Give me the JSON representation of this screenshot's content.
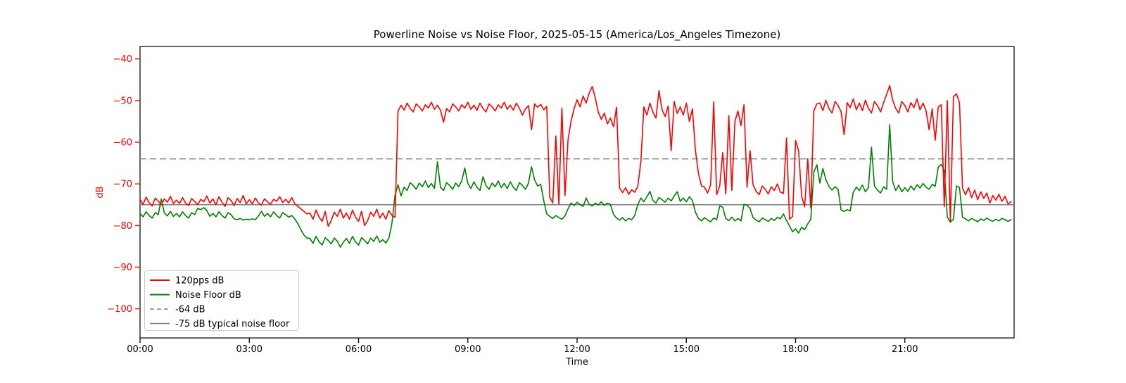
{
  "title": "Powerline Noise vs Noise Floor, 2025-05-15 (America/Los_Angeles Timezone)",
  "colors": {
    "series_red": "#ff0000",
    "series_green": "#008000",
    "reference_gray": "#808080",
    "y_axis_text": "#ff0000",
    "x_axis_text": "#000000",
    "legend_border": "#cccccc",
    "background": "#ffffff"
  },
  "legend": {
    "items": [
      {
        "label": "120pps dB",
        "color": "#ff0000",
        "style": "solid"
      },
      {
        "label": "Noise Floor dB",
        "color": "#008000",
        "style": "solid"
      },
      {
        "label": "-64 dB",
        "color": "#808080",
        "style": "dashed"
      },
      {
        "label": "-75 dB typical noise floor",
        "color": "#808080",
        "style": "solid"
      }
    ]
  },
  "chart_data": {
    "type": "line",
    "title": "Powerline Noise vs Noise Floor, 2025-05-15 (America/Los_Angeles Timezone)",
    "xlabel": "Time",
    "ylabel": "dB",
    "ylim": [
      -107,
      -37
    ],
    "xlim_hours": [
      0,
      24
    ],
    "grid": false,
    "legend_position": "lower left",
    "y_ticks": [
      {
        "value": -40,
        "label": "−40"
      },
      {
        "value": -50,
        "label": "−50"
      },
      {
        "value": -60,
        "label": "−60"
      },
      {
        "value": -70,
        "label": "−70"
      },
      {
        "value": -80,
        "label": "−80"
      },
      {
        "value": -90,
        "label": "−90"
      },
      {
        "value": -100,
        "label": "−100"
      }
    ],
    "x_ticks": [
      {
        "hour": 0,
        "label": "00:00"
      },
      {
        "hour": 3,
        "label": "03:00"
      },
      {
        "hour": 6,
        "label": "06:00"
      },
      {
        "hour": 9,
        "label": "09:00"
      },
      {
        "hour": 12,
        "label": "12:00"
      },
      {
        "hour": 15,
        "label": "15:00"
      },
      {
        "hour": 18,
        "label": "18:00"
      },
      {
        "hour": 21,
        "label": "21:00"
      }
    ],
    "sample_interval_min": 5,
    "series": [
      {
        "name": "120pps dB",
        "color": "#ff0000",
        "style": "solid",
        "values": [
          -73.7,
          -74.9,
          -73.2,
          -74.5,
          -75.3,
          -73.4,
          -74.1,
          -75.1,
          -73.6,
          -74.4,
          -73.0,
          -74.7,
          -73.9,
          -74.7,
          -73.3,
          -74.6,
          -75.2,
          -73.5,
          -74.2,
          -75.0,
          -73.7,
          -74.3,
          -72.9,
          -74.6,
          -73.6,
          -75.0,
          -73.1,
          -74.4,
          -75.4,
          -73.3,
          -74.0,
          -75.2,
          -73.5,
          -74.5,
          -72.8,
          -74.8,
          -73.8,
          -74.8,
          -73.4,
          -74.6,
          -75.1,
          -73.6,
          -74.3,
          -74.9,
          -73.7,
          -74.2,
          -73.1,
          -74.5,
          -73.7,
          -74.6,
          -73.3,
          -74.8,
          -75.4,
          -76.0,
          -76.6,
          -77.2,
          -77.0,
          -78.5,
          -76.3,
          -78.0,
          -79.0,
          -76.6,
          -80.2,
          -78.8,
          -76.8,
          -77.8,
          -76.1,
          -78.2,
          -77.0,
          -78.5,
          -76.3,
          -78.0,
          -79.0,
          -76.6,
          -80.0,
          -78.8,
          -76.8,
          -77.8,
          -76.1,
          -78.2,
          -77.0,
          -78.5,
          -76.4,
          -77.6,
          -78.0,
          -52.5,
          -51.1,
          -52.3,
          -50.6,
          -51.9,
          -52.7,
          -50.8,
          -51.5,
          -52.5,
          -51.0,
          -51.8,
          -50.4,
          -52.1,
          -51.1,
          -52.3,
          -55.2,
          -51.9,
          -52.7,
          -50.8,
          -51.5,
          -52.5,
          -51.0,
          -51.8,
          -50.4,
          -52.1,
          -51.1,
          -52.3,
          -50.6,
          -51.9,
          -52.7,
          -50.8,
          -51.5,
          -52.5,
          -51.0,
          -51.8,
          -50.4,
          -52.1,
          -51.1,
          -52.3,
          -50.6,
          -51.9,
          -53.5,
          -52.0,
          -51.2,
          -57.0,
          -50.8,
          -51.6,
          -50.9,
          -52.2,
          -51.4,
          -73.2,
          -74.6,
          -58.5,
          -74.9,
          -51.8,
          -72.8,
          -59.5,
          -55.0,
          -52.0,
          -49.8,
          -51.5,
          -48.9,
          -50.6,
          -48.2,
          -46.6,
          -49.4,
          -52.8,
          -54.5,
          -53.0,
          -55.6,
          -54.2,
          -56.3,
          -51.6,
          -71.0,
          -72.1,
          -70.9,
          -72.5,
          -71.4,
          -72.0,
          -70.6,
          -64.8,
          -51.5,
          -53.5,
          -50.6,
          -52.8,
          -54.2,
          -47.6,
          -52.2,
          -53.8,
          -51.3,
          -62.0,
          -50.2,
          -53.1,
          -51.5,
          -53.5,
          -50.6,
          -55.0,
          -52.0,
          -62.0,
          -67.5,
          -70.5,
          -70.8,
          -72.2,
          -70.2,
          -50.3,
          -72.6,
          -70.5,
          -62.5,
          -72.4,
          -53.6,
          -71.6,
          -55.0,
          -52.5,
          -56.0,
          -51.0,
          -70.8,
          -62.0,
          -70.2,
          -71.8,
          -72.6,
          -70.5,
          -71.3,
          -72.4,
          -70.7,
          -71.6,
          -70.0,
          -72.0,
          -72.3,
          -59.0,
          -78.5,
          -77.8,
          -59.6,
          -62.0,
          -73.0,
          -75.5,
          -64.0,
          -75.8,
          -52.5,
          -50.8,
          -50.6,
          -52.4,
          -49.9,
          -51.9,
          -53.0,
          -50.2,
          -51.2,
          -52.7,
          -58.2,
          -50.5,
          -51.7,
          -49.6,
          -52.2,
          -50.6,
          -52.4,
          -49.9,
          -51.9,
          -53.0,
          -50.2,
          -51.2,
          -52.7,
          -50.5,
          -48.5,
          -46.4,
          -49.9,
          -51.9,
          -53.0,
          -50.2,
          -51.2,
          -52.7,
          -50.5,
          -51.7,
          -49.6,
          -52.2,
          -50.6,
          -52.4,
          -57.0,
          -52.0,
          -59.5,
          -51.5,
          -51.0,
          -75.5,
          -50.0,
          -79.0,
          -49.0,
          -48.4,
          -50.5,
          -71.0,
          -72.6,
          -70.9,
          -73.3,
          -71.5,
          -73.8,
          -71.9,
          -73.5,
          -72.2,
          -74.6,
          -72.8,
          -73.9,
          -72.5,
          -74.2,
          -73.0,
          -74.8,
          -74.3
        ]
      },
      {
        "name": "Noise Floor dB",
        "color": "#008000",
        "style": "solid",
        "values": [
          -77.1,
          -77.9,
          -76.7,
          -77.6,
          -78.2,
          -76.9,
          -77.4,
          -73.6,
          -77.0,
          -77.7,
          -76.6,
          -77.8,
          -77.1,
          -77.9,
          -76.7,
          -77.6,
          -78.2,
          -76.9,
          -77.4,
          -75.9,
          -76.2,
          -75.7,
          -76.4,
          -77.8,
          -77.1,
          -77.9,
          -76.7,
          -77.6,
          -78.2,
          -76.9,
          -77.4,
          -78.4,
          -78.6,
          -78.3,
          -78.7,
          -78.5,
          -78.6,
          -78.4,
          -78.6,
          -77.7,
          -76.6,
          -77.8,
          -77.1,
          -77.9,
          -76.7,
          -77.6,
          -78.2,
          -76.9,
          -77.4,
          -78.0,
          -77.6,
          -78.4,
          -79.6,
          -81.0,
          -82.3,
          -83.0,
          -83.1,
          -84.3,
          -82.6,
          -83.9,
          -84.7,
          -82.9,
          -83.6,
          -84.4,
          -83.0,
          -83.8,
          -85.2,
          -84.0,
          -83.1,
          -84.3,
          -82.6,
          -83.9,
          -84.7,
          -82.9,
          -83.6,
          -84.4,
          -83.0,
          -83.8,
          -82.5,
          -84.0,
          -83.4,
          -84.2,
          -83.0,
          -79.5,
          -72.8,
          -70.2,
          -72.9,
          -70.8,
          -71.6,
          -69.7,
          -70.4,
          -71.3,
          -69.8,
          -70.7,
          -69.3,
          -70.9,
          -69.9,
          -71.1,
          -64.7,
          -70.8,
          -71.6,
          -69.7,
          -70.4,
          -71.3,
          -69.8,
          -70.7,
          -69.3,
          -66.2,
          -69.9,
          -71.1,
          -69.5,
          -70.8,
          -71.6,
          -68.3,
          -70.4,
          -71.3,
          -69.8,
          -70.7,
          -69.3,
          -70.9,
          -69.9,
          -71.1,
          -69.5,
          -70.8,
          -71.6,
          -69.7,
          -70.4,
          -71.3,
          -69.8,
          -65.9,
          -69.0,
          -70.5,
          -70.1,
          -74.0,
          -77.2,
          -77.8,
          -78.3,
          -77.6,
          -78.1,
          -78.5,
          -77.7,
          -76.0,
          -74.6,
          -75.2,
          -74.4,
          -75.0,
          -75.4,
          -73.4,
          -74.9,
          -75.3,
          -74.6,
          -75.1,
          -74.3,
          -75.2,
          -74.6,
          -75.0,
          -77.3,
          -78.2,
          -78.7,
          -78.1,
          -78.9,
          -78.3,
          -78.6,
          -77.6,
          -75.0,
          -73.4,
          -74.3,
          -73.1,
          -71.8,
          -74.0,
          -74.6,
          -73.3,
          -73.8,
          -74.4,
          -73.4,
          -74.1,
          -72.9,
          -71.9,
          -74.2,
          -73.4,
          -74.3,
          -73.1,
          -74.0,
          -76.8,
          -78.3,
          -78.9,
          -78.1,
          -78.7,
          -79.1,
          -78.2,
          -78.6,
          -75.3,
          -75.6,
          -78.3,
          -78.8,
          -78.0,
          -78.9,
          -78.3,
          -78.9,
          -74.9,
          -75.1,
          -75.9,
          -78.1,
          -78.7,
          -79.1,
          -78.2,
          -78.6,
          -79.0,
          -78.3,
          -78.8,
          -78.0,
          -78.4,
          -77.2,
          -78.8,
          -80.1,
          -81.5,
          -80.8,
          -81.8,
          -80.4,
          -81.0,
          -79.6,
          -78.5,
          -67.2,
          -65.4,
          -69.8,
          -66.3,
          -69.0,
          -70.6,
          -71.5,
          -70.7,
          -71.3,
          -76.3,
          -76.6,
          -76.2,
          -76.5,
          -72.0,
          -70.8,
          -71.6,
          -70.3,
          -71.9,
          -70.9,
          -61.2,
          -70.5,
          -71.5,
          -72.2,
          -70.7,
          -71.3,
          -55.8,
          -69.5,
          -71.6,
          -70.3,
          -71.9,
          -70.9,
          -71.8,
          -70.5,
          -71.5,
          -70.2,
          -71.0,
          -69.9,
          -70.8,
          -71.3,
          -70.1,
          -70.6,
          -66.0,
          -65.3,
          -66.8,
          -78.0,
          -79.2,
          -78.5,
          -70.5,
          -70.9,
          -78.0,
          -78.4,
          -78.9,
          -78.3,
          -78.7,
          -79.1,
          -78.4,
          -78.8,
          -78.2,
          -78.7,
          -79.0,
          -78.5,
          -78.9,
          -78.3,
          -78.6,
          -79.0,
          -78.6
        ]
      },
      {
        "name": "-64 dB",
        "color": "#808080",
        "style": "dashed",
        "ref_value": -64
      },
      {
        "name": "-75 dB typical noise floor",
        "color": "#808080",
        "style": "solid",
        "ref_value": -75
      }
    ]
  }
}
